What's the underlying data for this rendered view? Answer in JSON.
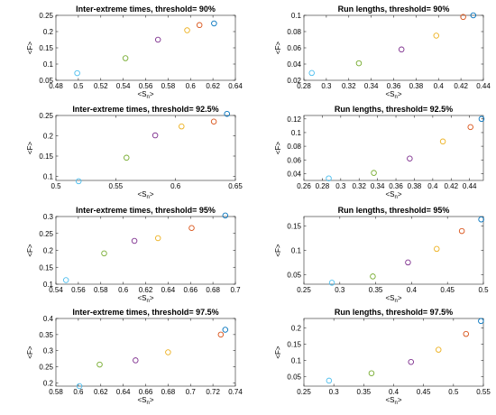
{
  "chart_data": [
    {
      "type": "scatter",
      "title": "Inter-extreme times, threshold= 90%",
      "xlabel": "<S_n>",
      "ylabel": "<F>",
      "xlim": [
        0.48,
        0.64
      ],
      "ylim": [
        0.05,
        0.25
      ],
      "xticks": [
        "0.48",
        "0.5",
        "0.52",
        "0.54",
        "0.56",
        "0.58",
        "0.6",
        "0.62",
        "0.64"
      ],
      "yticks": [
        "0.05",
        "0.1",
        "0.15",
        "0.2",
        "0.25"
      ],
      "xtick_values": [
        0.48,
        0.5,
        0.52,
        0.54,
        0.56,
        0.58,
        0.6,
        0.62,
        0.64
      ],
      "ytick_values": [
        0.05,
        0.1,
        0.15,
        0.2,
        0.25
      ],
      "x": [
        0.499,
        0.542,
        0.571,
        0.597,
        0.608,
        0.621
      ],
      "y": [
        0.072,
        0.118,
        0.175,
        0.204,
        0.22,
        0.225
      ]
    },
    {
      "type": "scatter",
      "title": "Run lengths, threshold= 90%",
      "xlabel": "<S_n>",
      "ylabel": "<F>",
      "xlim": [
        0.28,
        0.44
      ],
      "ylim": [
        0.02,
        0.1
      ],
      "xticks": [
        "0.28",
        "0.3",
        "0.32",
        "0.34",
        "0.36",
        "0.38",
        "0.4",
        "0.42",
        "0.44"
      ],
      "yticks": [
        "0.02",
        "0.04",
        "0.06",
        "0.08",
        "0.1"
      ],
      "xtick_values": [
        0.28,
        0.3,
        0.32,
        0.34,
        0.36,
        0.38,
        0.4,
        0.42,
        0.44
      ],
      "ytick_values": [
        0.02,
        0.04,
        0.06,
        0.08,
        0.1
      ],
      "x": [
        0.287,
        0.329,
        0.367,
        0.398,
        0.422,
        0.431
      ],
      "y": [
        0.029,
        0.041,
        0.058,
        0.075,
        0.098,
        0.1
      ]
    },
    {
      "type": "scatter",
      "title": "Inter-extreme times, threshold= 92.5%",
      "xlabel": "<S_n>",
      "ylabel": "<F>",
      "xlim": [
        0.5,
        0.65
      ],
      "ylim": [
        0.09,
        0.25
      ],
      "xticks": [
        "0.5",
        "0.55",
        "0.6",
        "0.65"
      ],
      "yticks": [
        "0.1",
        "0.15",
        "0.2",
        "0.25"
      ],
      "xtick_values": [
        0.5,
        0.55,
        0.6,
        0.65
      ],
      "ytick_values": [
        0.1,
        0.15,
        0.2,
        0.25
      ],
      "x": [
        0.519,
        0.559,
        0.583,
        0.605,
        0.632,
        0.643
      ],
      "y": [
        0.088,
        0.146,
        0.201,
        0.223,
        0.235,
        0.254
      ]
    },
    {
      "type": "scatter",
      "title": "Run lengths, threshold= 92.5%",
      "xlabel": "<S_n>",
      "ylabel": "<F>",
      "xlim": [
        0.26,
        0.455
      ],
      "ylim": [
        0.03,
        0.125
      ],
      "xticks": [
        "0.26",
        "0.28",
        "0.3",
        "0.32",
        "0.34",
        "0.36",
        "0.38",
        "0.4",
        "0.42",
        "0.44"
      ],
      "yticks": [
        "0.04",
        "0.06",
        "0.08",
        "0.1",
        "0.12"
      ],
      "xtick_values": [
        0.26,
        0.28,
        0.3,
        0.32,
        0.34,
        0.36,
        0.38,
        0.4,
        0.42,
        0.44
      ],
      "ytick_values": [
        0.04,
        0.06,
        0.08,
        0.1,
        0.12
      ],
      "x": [
        0.287,
        0.336,
        0.375,
        0.411,
        0.441,
        0.453
      ],
      "y": [
        0.033,
        0.041,
        0.062,
        0.087,
        0.108,
        0.12
      ]
    },
    {
      "type": "scatter",
      "title": "Inter-extreme times, threshold= 95%",
      "xlabel": "<S_n>",
      "ylabel": "<F>",
      "xlim": [
        0.54,
        0.7
      ],
      "ylim": [
        0.1,
        0.3
      ],
      "xticks": [
        "0.54",
        "0.56",
        "0.58",
        "0.6",
        "0.62",
        "0.64",
        "0.66",
        "0.68",
        "0.7"
      ],
      "yticks": [
        "0.1",
        "0.15",
        "0.2",
        "0.25",
        "0.3"
      ],
      "xtick_values": [
        0.54,
        0.56,
        0.58,
        0.6,
        0.62,
        0.64,
        0.66,
        0.68,
        0.7
      ],
      "ytick_values": [
        0.1,
        0.15,
        0.2,
        0.25,
        0.3
      ],
      "x": [
        0.549,
        0.583,
        0.61,
        0.631,
        0.661,
        0.691
      ],
      "y": [
        0.112,
        0.191,
        0.228,
        0.236,
        0.266,
        0.303
      ]
    },
    {
      "type": "scatter",
      "title": "Run lengths, threshold= 95%",
      "xlabel": "<S_n>",
      "ylabel": "<F>",
      "xlim": [
        0.25,
        0.5
      ],
      "ylim": [
        0.03,
        0.17
      ],
      "xticks": [
        "0.25",
        "0.3",
        "0.35",
        "0.4",
        "0.45",
        "0.5"
      ],
      "yticks": [
        "0.05",
        "0.1",
        "0.15"
      ],
      "xtick_values": [
        0.25,
        0.3,
        0.35,
        0.4,
        0.45,
        0.5
      ],
      "ytick_values": [
        0.05,
        0.1,
        0.15
      ],
      "x": [
        0.289,
        0.346,
        0.395,
        0.435,
        0.47,
        0.497
      ],
      "y": [
        0.033,
        0.046,
        0.075,
        0.103,
        0.14,
        0.164
      ]
    },
    {
      "type": "scatter",
      "title": "Inter-extreme times, threshold= 97.5%",
      "xlabel": "<S_n>",
      "ylabel": "<F>",
      "xlim": [
        0.58,
        0.74
      ],
      "ylim": [
        0.19,
        0.4
      ],
      "xticks": [
        "0.58",
        "0.6",
        "0.62",
        "0.64",
        "0.66",
        "0.68",
        "0.7",
        "0.72",
        "0.74"
      ],
      "yticks": [
        "0.2",
        "0.25",
        "0.3",
        "0.35",
        "0.4"
      ],
      "xtick_values": [
        0.58,
        0.6,
        0.62,
        0.64,
        0.66,
        0.68,
        0.7,
        0.72,
        0.74
      ],
      "ytick_values": [
        0.2,
        0.25,
        0.3,
        0.35,
        0.4
      ],
      "x": [
        0.601,
        0.619,
        0.651,
        0.68,
        0.727,
        0.731
      ],
      "y": [
        0.19,
        0.257,
        0.27,
        0.295,
        0.35,
        0.365
      ]
    },
    {
      "type": "scatter",
      "title": "Run lengths, threshold= 97.5%",
      "xlabel": "<S_n>",
      "ylabel": "<F>",
      "xlim": [
        0.25,
        0.55
      ],
      "ylim": [
        0.02,
        0.23
      ],
      "xticks": [
        "0.25",
        "0.3",
        "0.35",
        "0.4",
        "0.45",
        "0.5",
        "0.55"
      ],
      "yticks": [
        "0.05",
        "0.1",
        "0.15",
        "0.2"
      ],
      "xtick_values": [
        0.25,
        0.3,
        0.35,
        0.4,
        0.45,
        0.5,
        0.55
      ],
      "ytick_values": [
        0.05,
        0.1,
        0.15,
        0.2
      ],
      "x": [
        0.292,
        0.363,
        0.429,
        0.475,
        0.521,
        0.546
      ],
      "y": [
        0.037,
        0.06,
        0.095,
        0.133,
        0.182,
        0.222
      ]
    }
  ],
  "point_colors": [
    "#4DBEEE",
    "#77AC30",
    "#7E2F8E",
    "#EDB120",
    "#D95319",
    "#0072BD"
  ]
}
